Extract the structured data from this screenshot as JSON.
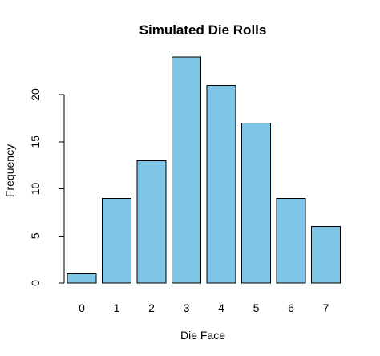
{
  "chart_data": {
    "type": "bar",
    "title": "Simulated Die Rolls",
    "xlabel": "Die Face",
    "ylabel": "Frequency",
    "categories": [
      "0",
      "1",
      "2",
      "3",
      "4",
      "5",
      "6",
      "7"
    ],
    "values": [
      1,
      9,
      13,
      24,
      21,
      17,
      9,
      6
    ],
    "ylim": [
      0,
      25
    ],
    "yticks": [
      0,
      5,
      10,
      15,
      20
    ],
    "bar_color": "#7ec6e6",
    "grid": false
  }
}
